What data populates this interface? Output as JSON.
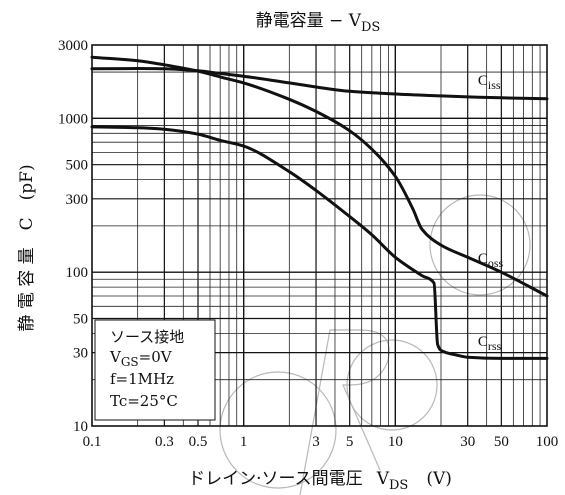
{
  "chart_data": {
    "type": "line",
    "title": "静電容量 − V",
    "title_sub": "DS",
    "xlabel": "ドレイン·ソース間電圧",
    "xlabel_var": "V",
    "xlabel_sub": "DS",
    "xlabel_unit": "(V)",
    "ylabel": "静 電 容 量　C　(pF)",
    "x_scale": "log",
    "y_scale": "log",
    "xlim": [
      0.1,
      100
    ],
    "ylim": [
      10,
      3000
    ],
    "grid": true,
    "x_ticks": [
      {
        "value": 0.1,
        "label": "0.1"
      },
      {
        "value": 0.3,
        "label": "0.3"
      },
      {
        "value": 0.5,
        "label": "0.5"
      },
      {
        "value": 1,
        "label": "1"
      },
      {
        "value": 3,
        "label": "3"
      },
      {
        "value": 5,
        "label": "5"
      },
      {
        "value": 10,
        "label": "10"
      },
      {
        "value": 30,
        "label": "30"
      },
      {
        "value": 50,
        "label": "50"
      },
      {
        "value": 100,
        "label": "100"
      }
    ],
    "y_ticks": [
      {
        "value": 10,
        "label": "10"
      },
      {
        "value": 30,
        "label": "30"
      },
      {
        "value": 50,
        "label": "50"
      },
      {
        "value": 100,
        "label": "100"
      },
      {
        "value": 300,
        "label": "300"
      },
      {
        "value": 500,
        "label": "500"
      },
      {
        "value": 1000,
        "label": "1000"
      },
      {
        "value": 3000,
        "label": "3000"
      }
    ],
    "series": [
      {
        "name": "C",
        "name_sub": "iss",
        "x": [
          0.1,
          0.2,
          0.3,
          0.5,
          0.7,
          1,
          2,
          3,
          5,
          10,
          20,
          30,
          50,
          100
        ],
        "y": [
          2100,
          2110,
          2100,
          2040,
          1960,
          1880,
          1700,
          1600,
          1500,
          1440,
          1400,
          1380,
          1360,
          1340
        ]
      },
      {
        "name": "C",
        "name_sub": "oss",
        "x": [
          0.1,
          0.2,
          0.3,
          0.5,
          0.7,
          1,
          2,
          3,
          5,
          7,
          10,
          13,
          15,
          20,
          30,
          50,
          100
        ],
        "y": [
          2500,
          2370,
          2230,
          2030,
          1860,
          1700,
          1330,
          1110,
          830,
          630,
          420,
          260,
          190,
          150,
          125,
          100,
          70
        ]
      },
      {
        "name": "C",
        "name_sub": "rss",
        "x": [
          0.1,
          0.2,
          0.3,
          0.5,
          0.7,
          1,
          2,
          3,
          5,
          7,
          10,
          15,
          18,
          19,
          20,
          25,
          30,
          50,
          100
        ],
        "y": [
          880,
          870,
          850,
          790,
          720,
          660,
          450,
          340,
          230,
          175,
          125,
          95,
          85,
          34,
          31,
          29,
          28,
          27.5,
          27.5
        ]
      }
    ],
    "conditions": {
      "line1": "ソース接地",
      "line2_var": "V",
      "line2_sub": "GS",
      "line2_val": "=0V",
      "line3": "f=1MHz",
      "line4": "Tc=25°C"
    },
    "colors": {
      "line": "#111111",
      "grid": "#222222",
      "watermark": "#b8b8b8",
      "background": "#ffffff"
    }
  }
}
